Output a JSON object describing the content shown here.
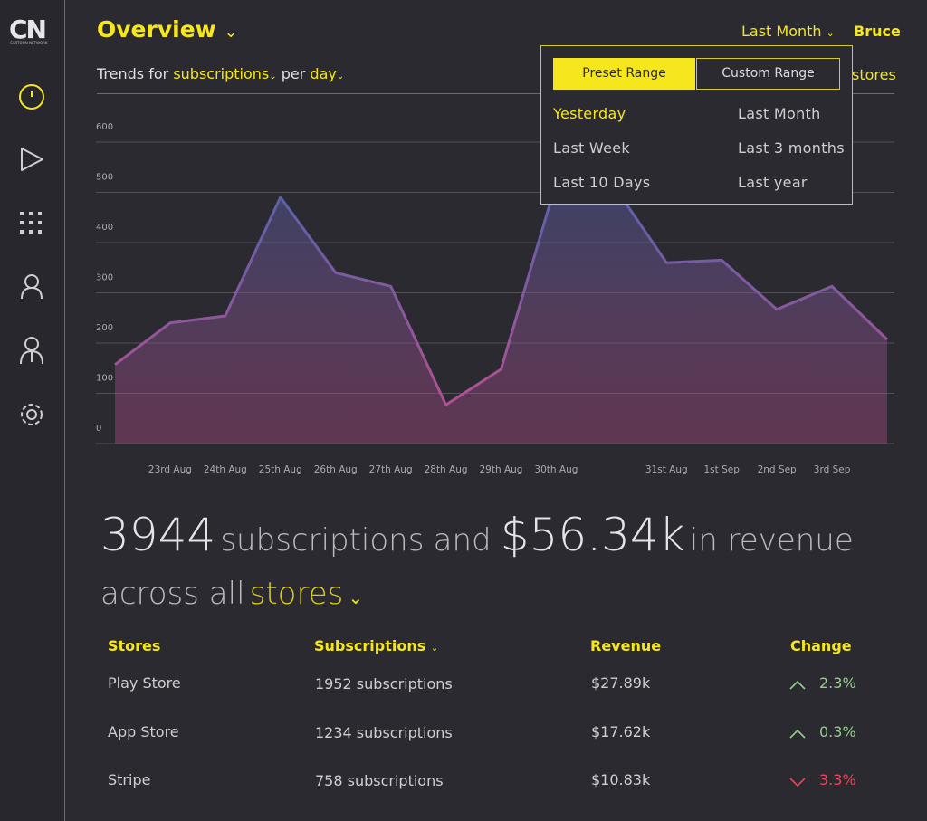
{
  "logo": {
    "mark": "CN",
    "caption": "CARTOON NETWORK"
  },
  "header": {
    "title": "Overview",
    "range": "Last Month",
    "user": "Bruce"
  },
  "trends": {
    "prefix": "Trends for",
    "metric": "subscriptions",
    "per": "per",
    "unit": "day",
    "right": "stores"
  },
  "dropdown": {
    "tabs": [
      "Preset Range",
      "Custom Range"
    ],
    "options": [
      [
        "Yesterday",
        "Last Month"
      ],
      [
        "Last Week",
        "Last 3 months"
      ],
      [
        "Last 10 Days",
        "Last year"
      ]
    ]
  },
  "chart_data": {
    "type": "area",
    "categories": [
      null,
      "23rd Aug",
      "24th Aug",
      "25th Aug",
      "26th Aug",
      "27th Aug",
      "28th Aug",
      "29th Aug",
      "30th Aug",
      null,
      "31st Aug",
      "1st Sep",
      "2nd Sep",
      "3rd Sep",
      null
    ],
    "values": [
      157,
      240,
      254,
      490,
      340,
      313,
      77,
      148,
      520,
      520,
      360,
      365,
      267,
      313,
      207
    ],
    "colors": [
      "#4466b0",
      "#c24d8e"
    ],
    "ylim": [
      0,
      600
    ],
    "yticks": [
      0,
      100,
      200,
      300,
      400,
      500,
      600
    ],
    "grid": true
  },
  "summary": {
    "count": "3944",
    "count_label": "subscriptions",
    "and": "and",
    "revenue": "$56.34k",
    "revenue_label": "in revenue",
    "across": "across all",
    "stores": "stores"
  },
  "table": {
    "headers": [
      "Stores",
      "Subscriptions",
      "Revenue",
      "Change"
    ],
    "rows": [
      {
        "store": "Play Store",
        "subscriptions": "1952 subscriptions",
        "revenue": "$27.89k",
        "change": "2.3%",
        "trend": "up"
      },
      {
        "store": "App Store",
        "subscriptions": "1234 subscriptions",
        "revenue": "$17.62k",
        "change": "0.3%",
        "trend": "up"
      },
      {
        "store": "Stripe",
        "subscriptions": "758 subscriptions",
        "revenue": "$10.83k",
        "change": "3.3%",
        "trend": "down"
      }
    ]
  }
}
